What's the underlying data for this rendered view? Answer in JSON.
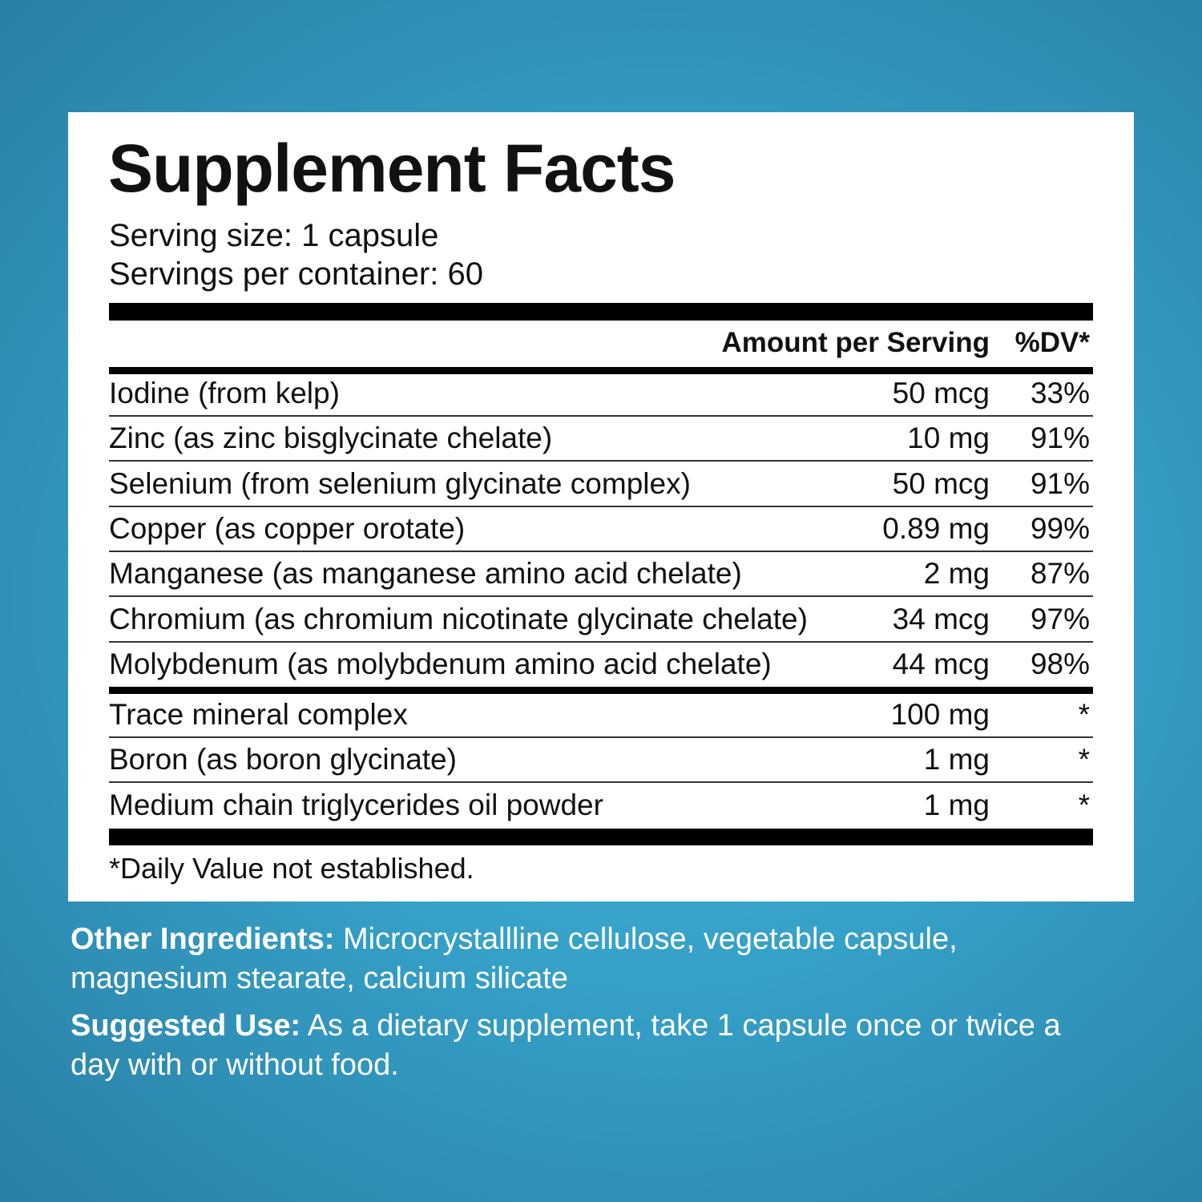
{
  "label": {
    "title": "Supplement Facts",
    "serving_size": "Serving size: 1 capsule",
    "servings_per_container": "Servings per container: 60",
    "header": {
      "amount": "Amount per Serving",
      "dv": "%DV*"
    },
    "groups": [
      [
        [
          "Iodine (from kelp)",
          "50 mcg",
          "33%"
        ],
        [
          "Zinc (as zinc bisglycinate chelate)",
          "10 mg",
          "91%"
        ],
        [
          "Selenium (from selenium glycinate complex)",
          "50 mcg",
          "91%"
        ],
        [
          "Copper (as copper orotate)",
          "0.89 mg",
          "99%"
        ],
        [
          "Manganese (as manganese amino acid chelate)",
          "2 mg",
          "87%"
        ],
        [
          "Chromium (as chromium nicotinate glycinate chelate)",
          "34 mcg",
          "97%"
        ],
        [
          "Molybdenum (as molybdenum amino acid chelate)",
          "44 mcg",
          "98%"
        ]
      ],
      [
        [
          "Trace mineral complex",
          "100 mg",
          "*"
        ],
        [
          "Boron (as boron glycinate)",
          "1 mg",
          "*"
        ],
        [
          "Medium chain triglycerides oil powder",
          "1 mg",
          "*"
        ]
      ]
    ],
    "footnote": "*Daily Value not established."
  },
  "notes": [
    {
      "label": "Other Ingredients:",
      "text": "Microcrystallline cellulose, vegetable capsule, magnesium stearate, calcium silicate"
    },
    {
      "label": "Suggested Use:",
      "text": "As a dietary supplement, take 1 capsule once or twice a day with or without food."
    }
  ]
}
